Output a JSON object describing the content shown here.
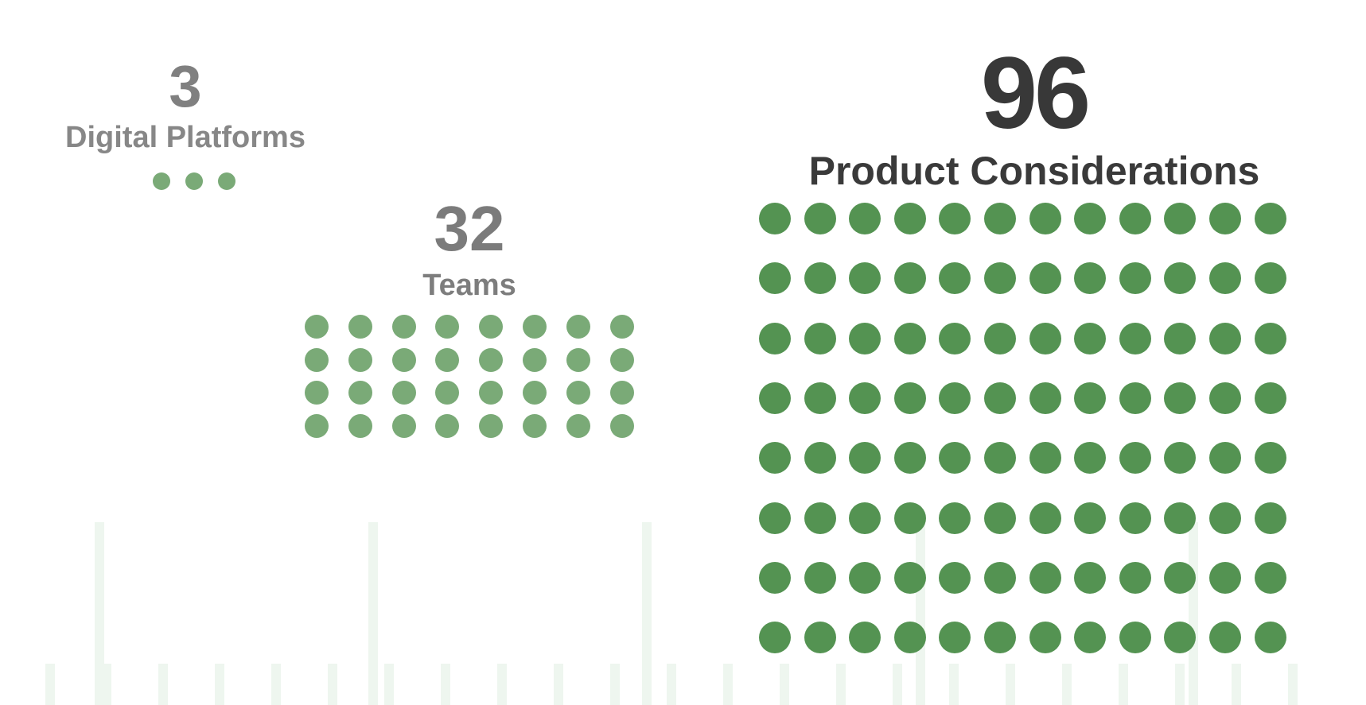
{
  "colors": {
    "background": "#ffffff",
    "dot_light": "#7aaa77",
    "dot_dark": "#549352",
    "background_lines": "#eef6ef"
  },
  "groups": [
    {
      "id": "platforms",
      "number": "3",
      "label": "Digital Platforms",
      "count": 3,
      "columns": 3,
      "dot_color": "#7aaa77"
    },
    {
      "id": "teams",
      "number": "32",
      "label": "Teams",
      "count": 32,
      "columns": 8,
      "dot_color": "#7aaa77"
    },
    {
      "id": "products",
      "number": "96",
      "label": "Product Considerations",
      "count": 96,
      "columns": 12,
      "dot_color": "#549352"
    }
  ]
}
